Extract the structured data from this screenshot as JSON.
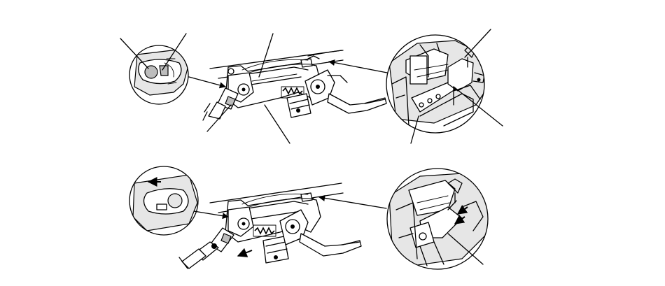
{
  "diagram": {
    "description": "",
    "views": [
      {
        "name": "upper-view",
        "callouts": 8,
        "detail_circles": 2
      },
      {
        "name": "lower-view",
        "callouts": 2,
        "detail_circles": 2,
        "direction_arrows": 3
      }
    ]
  }
}
